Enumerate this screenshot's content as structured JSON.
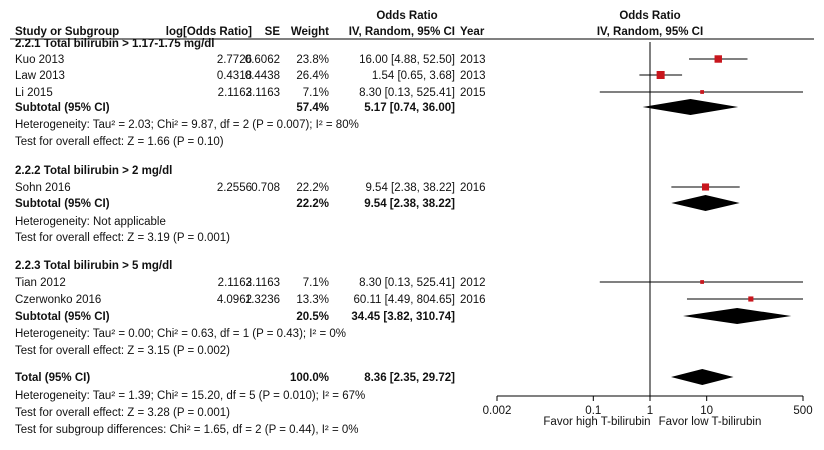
{
  "chart_data": {
    "type": "forest",
    "header": {
      "odds_ratio_title": "Odds Ratio",
      "columns": {
        "study": "Study or Subgroup",
        "log_or": "log[Odds Ratio]",
        "se": "SE",
        "weight": "Weight",
        "ci": "IV, Random, 95% CI",
        "year": "Year"
      },
      "plot_title": "Odds Ratio",
      "plot_subtitle": "IV, Random, 95% CI"
    },
    "rows": [
      {
        "kind": "subgroup",
        "label": "2.2.1 Total bilirubin > 1.17-1.75 mg/dl"
      },
      {
        "kind": "study",
        "study": "Kuo 2013",
        "log_or": "2.7726",
        "se": "0.6062",
        "weight": "23.8%",
        "ci_text": "16.00 [4.88, 52.50]",
        "year": "2013",
        "or": 16.0,
        "lo": 4.88,
        "hi": 52.5
      },
      {
        "kind": "study",
        "study": "Law 2013",
        "log_or": "0.4318",
        "se": "0.4438",
        "weight": "26.4%",
        "ci_text": "1.54 [0.65, 3.68]",
        "year": "2013",
        "or": 1.54,
        "lo": 0.65,
        "hi": 3.68
      },
      {
        "kind": "study",
        "study": "Li 2015",
        "log_or": "2.1163",
        "se": "2.1163",
        "weight": "7.1%",
        "ci_text": "8.30 [0.13, 525.41]",
        "year": "2015",
        "or": 8.3,
        "lo": 0.13,
        "hi": 525.41
      },
      {
        "kind": "subtotal",
        "label": "Subtotal (95% CI)",
        "weight": "57.4%",
        "ci_text": "5.17 [0.74, 36.00]",
        "or": 5.17,
        "lo": 0.74,
        "hi": 36.0
      },
      {
        "kind": "note",
        "text": "Heterogeneity: Tau² = 2.03; Chi² = 9.87, df = 2 (P = 0.007); I² = 80%"
      },
      {
        "kind": "note",
        "text": "Test for overall effect: Z = 1.66 (P = 0.10)"
      },
      {
        "kind": "subgroup",
        "label": "2.2.2 Total bilirubin > 2 mg/dl"
      },
      {
        "kind": "study",
        "study": "Sohn 2016",
        "log_or": "2.2556",
        "se": "0.708",
        "weight": "22.2%",
        "ci_text": "9.54 [2.38, 38.22]",
        "year": "2016",
        "or": 9.54,
        "lo": 2.38,
        "hi": 38.22
      },
      {
        "kind": "subtotal",
        "label": "Subtotal (95% CI)",
        "weight": "22.2%",
        "ci_text": "9.54 [2.38, 38.22]",
        "or": 9.54,
        "lo": 2.38,
        "hi": 38.22
      },
      {
        "kind": "note",
        "text": "Heterogeneity: Not applicable"
      },
      {
        "kind": "note",
        "text": "Test for overall effect: Z = 3.19 (P = 0.001)"
      },
      {
        "kind": "subgroup",
        "label": "2.2.3 Total bilirubin > 5 mg/dl"
      },
      {
        "kind": "study",
        "study": "Tian 2012",
        "log_or": "2.1163",
        "se": "2.1163",
        "weight": "7.1%",
        "ci_text": "8.30 [0.13, 525.41]",
        "year": "2012",
        "or": 8.3,
        "lo": 0.13,
        "hi": 525.41
      },
      {
        "kind": "study",
        "study": "Czerwonko 2016",
        "log_or": "4.0962",
        "se": "1.3236",
        "weight": "13.3%",
        "ci_text": "60.11 [4.49, 804.65]",
        "year": "2016",
        "or": 60.11,
        "lo": 4.49,
        "hi": 804.65
      },
      {
        "kind": "subtotal",
        "label": "Subtotal (95% CI)",
        "weight": "20.5%",
        "ci_text": "34.45 [3.82, 310.74]",
        "or": 34.45,
        "lo": 3.82,
        "hi": 310.74
      },
      {
        "kind": "note",
        "text": "Heterogeneity: Tau² = 0.00; Chi² = 0.63, df = 1 (P = 0.43); I² = 0%"
      },
      {
        "kind": "note",
        "text": "Test for overall effect: Z = 3.15 (P = 0.002)"
      },
      {
        "kind": "total",
        "label": "Total (95% CI)",
        "weight": "100.0%",
        "ci_text": "8.36 [2.35, 29.72]",
        "or": 8.36,
        "lo": 2.35,
        "hi": 29.72
      },
      {
        "kind": "note",
        "text": "Heterogeneity: Tau² = 1.39; Chi² = 15.20, df = 5 (P = 0.010); I² = 67%"
      },
      {
        "kind": "note",
        "text": "Test for overall effect: Z = 3.28 (P = 0.001)"
      },
      {
        "kind": "note",
        "text": "Test for subgroup differences: Chi² = 1.65, df = 2 (P = 0.44), I² = 0%"
      }
    ],
    "x_axis": {
      "scale": "log",
      "xlim": [
        0.002,
        500
      ],
      "ticks": [
        0.002,
        0.1,
        1,
        10,
        500
      ],
      "tick_labels": [
        "0.002",
        "0.1",
        "1",
        "10",
        "500"
      ],
      "null_line": 1,
      "label_left": "Favor high T-bilirubin",
      "label_right": "Favor low T-bilirubin"
    },
    "colors": {
      "point": "#c8161d",
      "diamond": "#000000",
      "line": "#000000"
    }
  }
}
